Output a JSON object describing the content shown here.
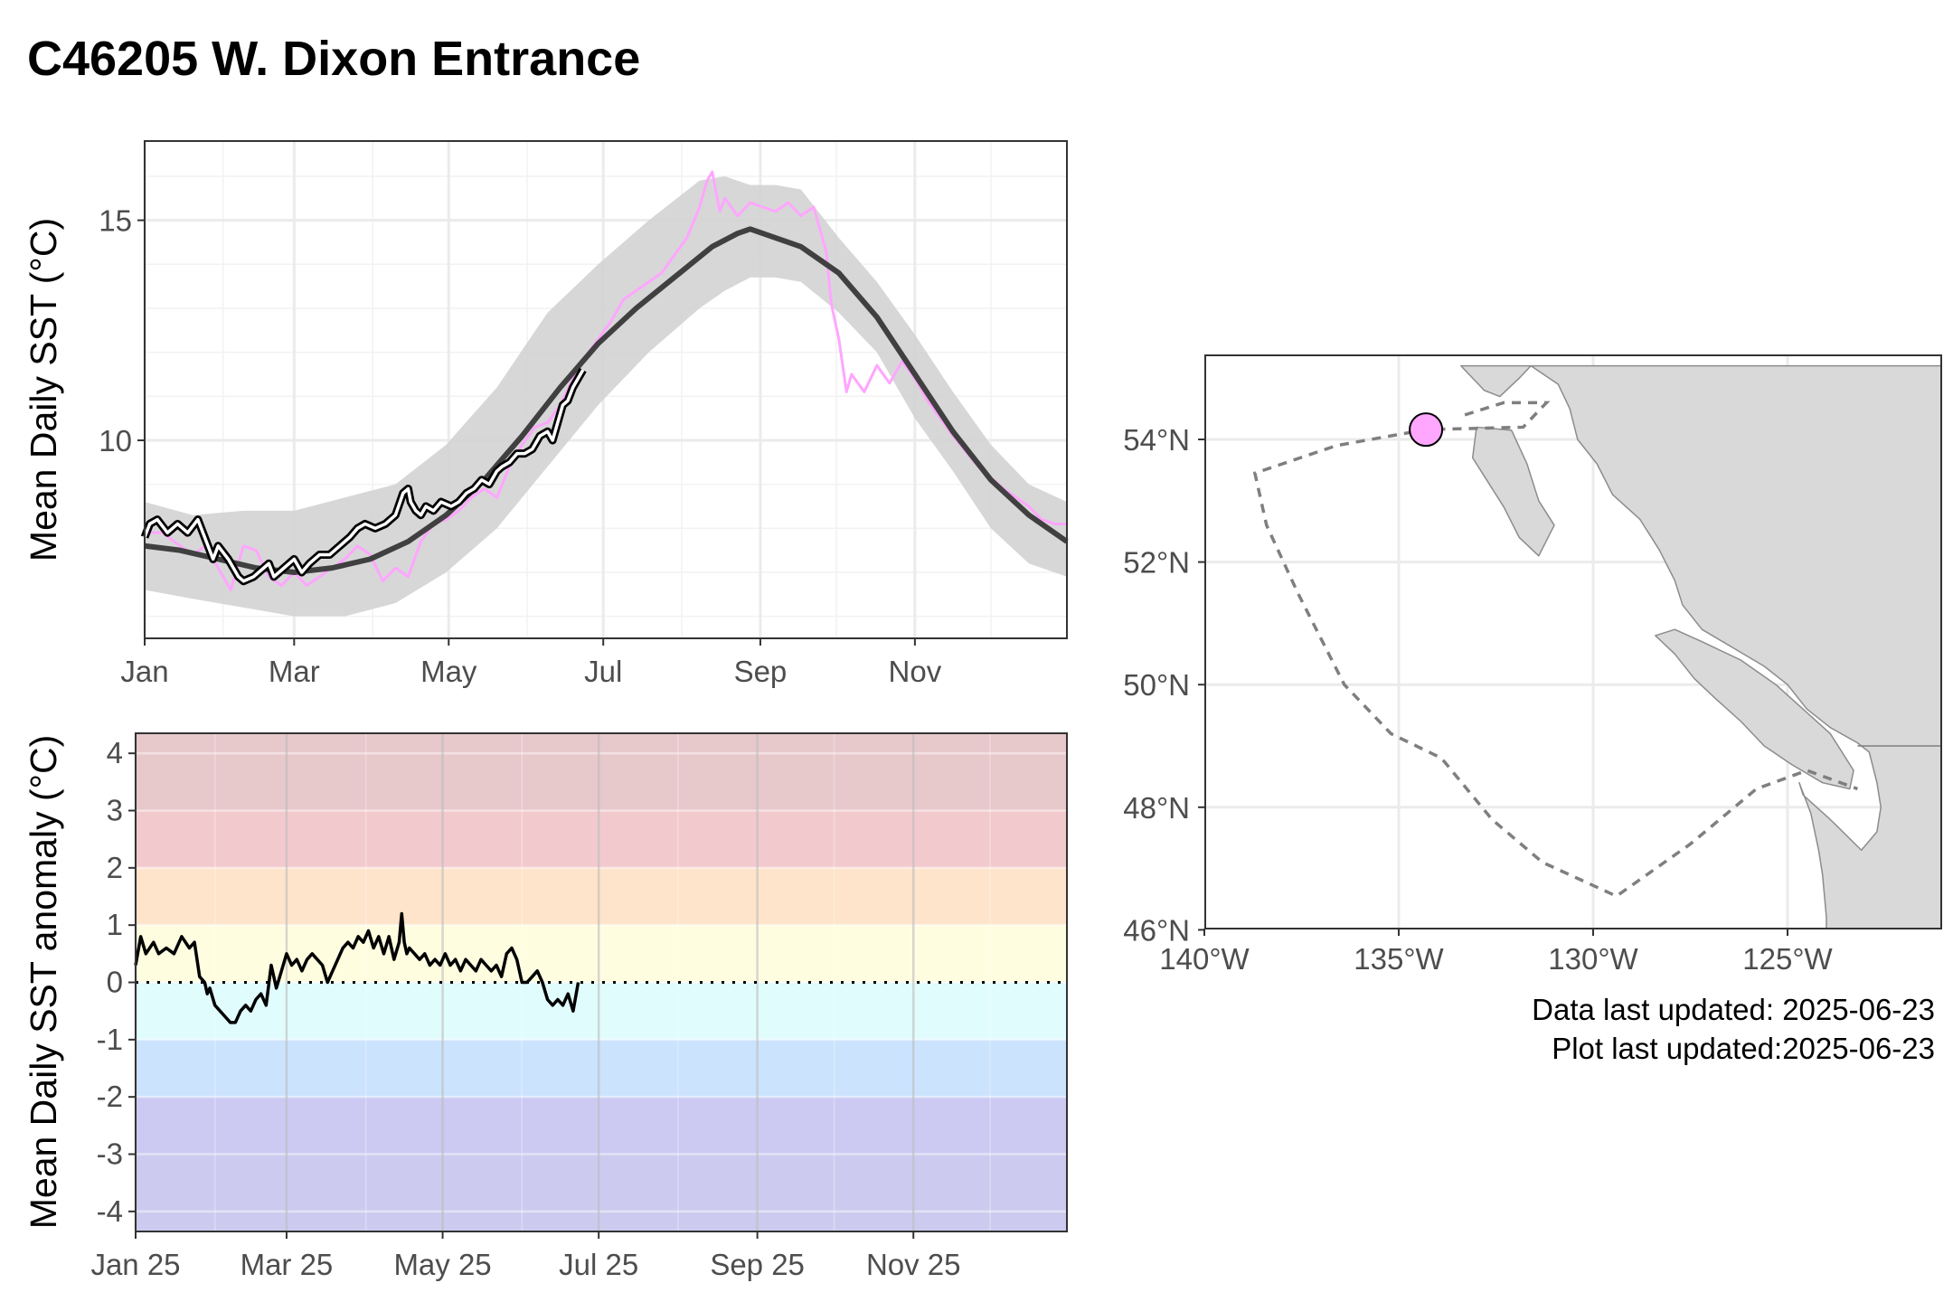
{
  "title": "C46205 W. Dixon Entrance",
  "colors": {
    "climatology": "#404040",
    "band": "#d3d3d3",
    "last_year": "#ffa6ff",
    "current_year": "#000000",
    "station": "#ffa6ff",
    "land": "#d9d9d9",
    "coast": "#8c8c8c",
    "boundary": "#7f7f7f"
  },
  "chart_data": [
    {
      "type": "line",
      "id": "sst",
      "ylabel": "Mean Daily SST (°C)",
      "ylim": [
        5.5,
        16.8
      ],
      "xlim": [
        1,
        365
      ],
      "grid": true,
      "x_ticks": [
        {
          "day": 1,
          "label": "Jan"
        },
        {
          "day": 60,
          "label": "Mar"
        },
        {
          "day": 121,
          "label": "May"
        },
        {
          "day": 182,
          "label": "Jul"
        },
        {
          "day": 244,
          "label": "Sep"
        },
        {
          "day": 305,
          "label": "Nov"
        }
      ],
      "y_ticks": [
        10,
        15
      ],
      "series": [
        {
          "key": "band_upper",
          "x": [
            1,
            20,
            40,
            60,
            80,
            100,
            120,
            140,
            160,
            180,
            200,
            220,
            230,
            240,
            250,
            260,
            275,
            290,
            305,
            320,
            335,
            350,
            365
          ],
          "values": [
            8.6,
            8.3,
            8.4,
            8.4,
            8.7,
            9.0,
            9.9,
            11.2,
            12.9,
            14.0,
            15.0,
            15.9,
            16.0,
            15.8,
            15.8,
            15.7,
            14.6,
            13.6,
            12.4,
            11.1,
            9.9,
            9.0,
            8.6
          ]
        },
        {
          "key": "band_lower",
          "x": [
            1,
            20,
            40,
            60,
            80,
            100,
            120,
            140,
            160,
            180,
            200,
            220,
            230,
            240,
            250,
            260,
            275,
            290,
            305,
            320,
            335,
            350,
            365
          ],
          "values": [
            6.6,
            6.4,
            6.2,
            6.0,
            6.0,
            6.3,
            7.0,
            8.0,
            9.4,
            10.8,
            12.0,
            13.0,
            13.4,
            13.7,
            13.7,
            13.6,
            12.9,
            12.0,
            10.5,
            9.3,
            8.0,
            7.2,
            6.9
          ]
        },
        {
          "key": "climatology",
          "x": [
            1,
            15,
            30,
            45,
            60,
            75,
            90,
            105,
            120,
            135,
            150,
            165,
            180,
            195,
            210,
            225,
            235,
            240,
            245,
            260,
            275,
            290,
            305,
            320,
            335,
            350,
            365
          ],
          "values": [
            7.6,
            7.5,
            7.3,
            7.1,
            7.0,
            7.1,
            7.3,
            7.7,
            8.3,
            9.1,
            10.1,
            11.2,
            12.2,
            13.0,
            13.7,
            14.4,
            14.7,
            14.8,
            14.7,
            14.4,
            13.8,
            12.8,
            11.5,
            10.2,
            9.1,
            8.3,
            7.7
          ]
        },
        {
          "key": "last_year",
          "x": [
            1,
            8,
            15,
            20,
            25,
            30,
            35,
            40,
            45,
            50,
            55,
            60,
            65,
            70,
            75,
            80,
            85,
            90,
            95,
            100,
            105,
            110,
            115,
            120,
            125,
            130,
            135,
            140,
            145,
            150,
            155,
            160,
            165,
            170,
            175,
            180,
            185,
            190,
            195,
            200,
            205,
            210,
            215,
            220,
            223,
            225,
            228,
            230,
            235,
            240,
            245,
            250,
            255,
            260,
            265,
            270,
            272,
            275,
            278,
            280,
            285,
            290,
            295,
            300,
            305,
            310,
            320,
            330,
            340,
            350,
            355,
            360,
            365
          ],
          "values": [
            7.9,
            7.9,
            7.6,
            7.4,
            7.6,
            7.1,
            6.6,
            7.6,
            7.5,
            6.9,
            6.7,
            7.0,
            6.7,
            6.9,
            7.1,
            7.3,
            7.6,
            7.4,
            6.8,
            7.1,
            6.9,
            7.7,
            8.1,
            8.2,
            8.4,
            8.7,
            8.9,
            8.7,
            9.4,
            9.9,
            10.3,
            10.4,
            10.8,
            11.4,
            11.9,
            12.3,
            12.7,
            13.2,
            13.4,
            13.6,
            13.8,
            14.2,
            14.6,
            15.3,
            15.9,
            16.1,
            15.2,
            15.5,
            15.1,
            15.4,
            15.3,
            15.2,
            15.4,
            15.1,
            15.3,
            14.3,
            13.1,
            12.3,
            11.1,
            11.5,
            11.1,
            11.7,
            11.3,
            11.8,
            11.4,
            10.9,
            10.1,
            9.4,
            8.9,
            8.5,
            8.2,
            8.1,
            8.1
          ]
        },
        {
          "key": "current_year",
          "x": [
            1,
            3,
            6,
            10,
            14,
            18,
            22,
            26,
            28,
            30,
            34,
            38,
            40,
            44,
            48,
            50,
            52,
            56,
            60,
            63,
            66,
            70,
            74,
            78,
            82,
            85,
            88,
            92,
            96,
            100,
            103,
            105,
            106,
            108,
            110,
            112,
            115,
            118,
            122,
            125,
            128,
            131,
            134,
            137,
            140,
            142,
            145,
            148,
            151,
            154,
            157,
            160,
            162,
            164,
            166,
            168,
            170,
            172,
            174
          ],
          "values": [
            7.8,
            8.1,
            8.2,
            7.9,
            8.1,
            7.9,
            8.2,
            7.6,
            7.3,
            7.6,
            7.3,
            6.9,
            6.8,
            6.9,
            7.1,
            7.2,
            6.9,
            7.1,
            7.3,
            7.0,
            7.2,
            7.4,
            7.4,
            7.6,
            7.8,
            8.0,
            8.1,
            8.0,
            8.1,
            8.3,
            8.8,
            8.9,
            8.6,
            8.4,
            8.3,
            8.5,
            8.4,
            8.6,
            8.5,
            8.6,
            8.8,
            8.9,
            9.1,
            9.0,
            9.3,
            9.4,
            9.5,
            9.7,
            9.7,
            9.8,
            10.1,
            10.2,
            10.0,
            10.4,
            10.8,
            10.9,
            11.2,
            11.4,
            11.6
          ]
        }
      ]
    },
    {
      "type": "line",
      "id": "anomaly",
      "ylabel": "Mean Daily SST anomaly (°C)",
      "ylim": [
        -4.35,
        4.35
      ],
      "xlim": [
        1,
        365
      ],
      "grid": true,
      "x_ticks": [
        {
          "day": 1,
          "label": "Jan 25"
        },
        {
          "day": 60,
          "label": "Mar 25"
        },
        {
          "day": 121,
          "label": "May 25"
        },
        {
          "day": 182,
          "label": "Jul 25"
        },
        {
          "day": 244,
          "label": "Sep 25"
        },
        {
          "day": 305,
          "label": "Nov 25"
        }
      ],
      "y_ticks": [
        4,
        3,
        2,
        1,
        0,
        -1,
        -2,
        -3,
        -4
      ],
      "y_tick_labels": [
        "4",
        "3",
        "2",
        "1",
        "0",
        "-1",
        "-2",
        "-3",
        "-4"
      ],
      "bands": [
        {
          "from": 3,
          "to": 4.35,
          "color": "#e7c8cb"
        },
        {
          "from": 2,
          "to": 3,
          "color": "#f2cacd"
        },
        {
          "from": 1,
          "to": 2,
          "color": "#fde4cb"
        },
        {
          "from": 0,
          "to": 1,
          "color": "#fefde0"
        },
        {
          "from": -1,
          "to": 0,
          "color": "#e0fcfd"
        },
        {
          "from": -2,
          "to": -1,
          "color": "#cbe3fd"
        },
        {
          "from": -3,
          "to": -2,
          "color": "#cccaf3"
        },
        {
          "from": -4.35,
          "to": -3,
          "color": "#cccbef"
        }
      ],
      "reference_line": 0,
      "series": [
        {
          "key": "anomaly",
          "x": [
            1,
            3,
            5,
            8,
            10,
            13,
            16,
            19,
            22,
            24,
            26,
            28,
            29,
            30,
            32,
            34,
            36,
            38,
            40,
            42,
            44,
            46,
            48,
            50,
            52,
            54,
            56,
            58,
            60,
            62,
            64,
            66,
            68,
            70,
            72,
            74,
            76,
            78,
            80,
            82,
            84,
            86,
            88,
            90,
            92,
            94,
            96,
            98,
            100,
            102,
            104,
            105,
            106,
            107,
            108,
            110,
            112,
            114,
            116,
            118,
            120,
            122,
            124,
            126,
            128,
            130,
            132,
            134,
            136,
            138,
            140,
            142,
            144,
            146,
            148,
            150,
            152,
            154,
            156,
            158,
            160,
            162,
            164,
            166,
            168,
            170,
            172,
            174
          ],
          "values": [
            0.3,
            0.8,
            0.5,
            0.7,
            0.5,
            0.6,
            0.5,
            0.8,
            0.6,
            0.7,
            0.1,
            0.0,
            -0.2,
            -0.1,
            -0.4,
            -0.5,
            -0.6,
            -0.7,
            -0.7,
            -0.5,
            -0.4,
            -0.5,
            -0.3,
            -0.2,
            -0.4,
            0.3,
            -0.1,
            0.2,
            0.5,
            0.3,
            0.4,
            0.2,
            0.4,
            0.5,
            0.4,
            0.3,
            0.0,
            0.2,
            0.4,
            0.6,
            0.7,
            0.6,
            0.8,
            0.7,
            0.9,
            0.6,
            0.8,
            0.5,
            0.8,
            0.4,
            0.7,
            1.2,
            0.7,
            0.5,
            0.6,
            0.5,
            0.4,
            0.5,
            0.3,
            0.4,
            0.3,
            0.5,
            0.3,
            0.4,
            0.2,
            0.4,
            0.3,
            0.2,
            0.4,
            0.3,
            0.2,
            0.3,
            0.1,
            0.5,
            0.6,
            0.4,
            0.0,
            0.0,
            0.1,
            0.2,
            0.0,
            -0.3,
            -0.4,
            -0.3,
            -0.4,
            -0.2,
            -0.5,
            0.0
          ]
        }
      ]
    }
  ],
  "map": {
    "lon_ticks": [
      {
        "lon": -140,
        "label": "140°W"
      },
      {
        "lon": -135,
        "label": "135°W"
      },
      {
        "lon": -130,
        "label": "130°W"
      },
      {
        "lon": -125,
        "label": "125°W"
      }
    ],
    "lat_ticks": [
      {
        "lat": 54,
        "label": "54°N"
      },
      {
        "lat": 52,
        "label": "52°N"
      },
      {
        "lat": 50,
        "label": "50°N"
      },
      {
        "lat": 48,
        "label": "48°N"
      },
      {
        "lat": 46,
        "label": "46°N"
      }
    ],
    "station": {
      "lon": -134.3,
      "lat": 54.16
    },
    "region_boundary": [
      [
        -133.3,
        54.4
      ],
      [
        -132.3,
        54.6
      ],
      [
        -131.2,
        54.6
      ],
      [
        -131.8,
        54.2
      ],
      [
        -134.3,
        54.16
      ],
      [
        -136.6,
        53.9
      ],
      [
        -138.7,
        53.45
      ],
      [
        -138.4,
        52.6
      ],
      [
        -137.6,
        51.5
      ],
      [
        -136.4,
        50.0
      ],
      [
        -135.2,
        49.2
      ],
      [
        -133.9,
        48.8
      ],
      [
        -132.6,
        47.8
      ],
      [
        -131.3,
        47.1
      ],
      [
        -129.4,
        46.55
      ],
      [
        -127.5,
        47.4
      ],
      [
        -125.8,
        48.3
      ],
      [
        -124.5,
        48.6
      ],
      [
        -123.2,
        48.3
      ]
    ]
  },
  "footer": {
    "data_updated": "Data last updated: 2025-06-23",
    "plot_updated": "Plot last updated:2025-06-23"
  }
}
